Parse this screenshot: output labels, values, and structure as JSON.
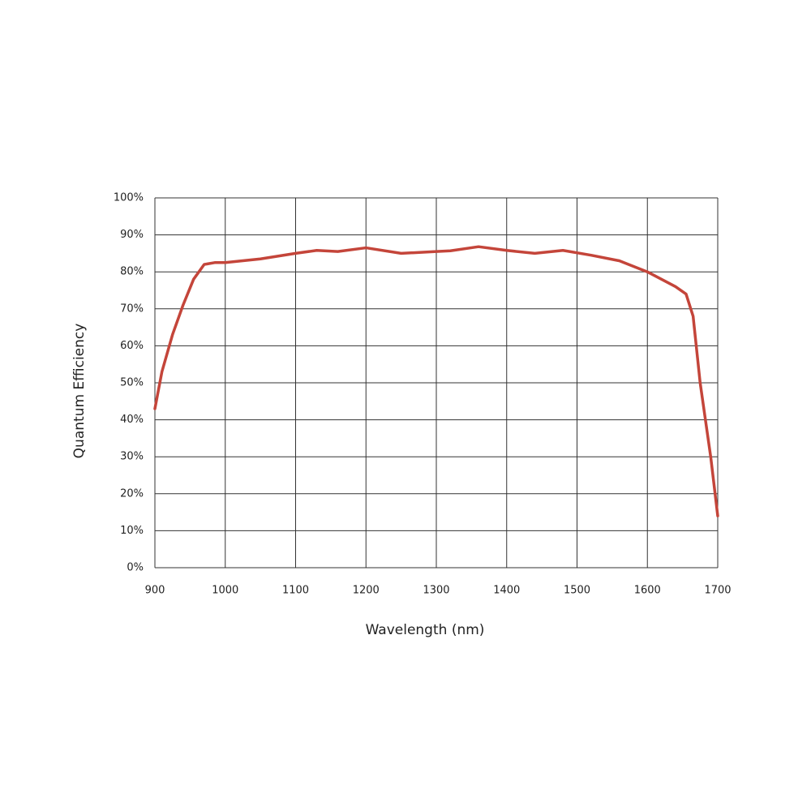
{
  "chart_data": {
    "type": "line",
    "x_label": "Wavelength (nm)",
    "y_label": "Quantum Efficiency",
    "x": [
      900,
      910,
      925,
      940,
      955,
      970,
      985,
      1000,
      1050,
      1100,
      1130,
      1160,
      1200,
      1250,
      1300,
      1320,
      1360,
      1400,
      1440,
      1480,
      1520,
      1560,
      1600,
      1640,
      1655,
      1665,
      1675,
      1690,
      1700
    ],
    "values": [
      43,
      53,
      63,
      71,
      78,
      82,
      82.5,
      82.5,
      83.5,
      85,
      85.8,
      85.5,
      86.5,
      85,
      85.5,
      85.7,
      86.8,
      85.8,
      85,
      85.8,
      84.5,
      83,
      80,
      76,
      74,
      68,
      50,
      30,
      14
    ],
    "color": "#c4453a",
    "xlim": [
      900,
      1700
    ],
    "xticks": [
      900,
      1000,
      1100,
      1200,
      1300,
      1400,
      1500,
      1600,
      1700
    ],
    "ylim": [
      0,
      100
    ],
    "yticks": [
      {
        "value": 0,
        "label": "0%"
      },
      {
        "value": 10,
        "label": "10%"
      },
      {
        "value": 20,
        "label": "20%"
      },
      {
        "value": 30,
        "label": "30%"
      },
      {
        "value": 40,
        "label": "40%"
      },
      {
        "value": 50,
        "label": "50%"
      },
      {
        "value": 60,
        "label": "60%"
      },
      {
        "value": 70,
        "label": "70%"
      },
      {
        "value": 80,
        "label": "80%"
      },
      {
        "value": 90,
        "label": "90%"
      },
      {
        "value": 100,
        "label": "100%"
      }
    ],
    "grid": true
  }
}
